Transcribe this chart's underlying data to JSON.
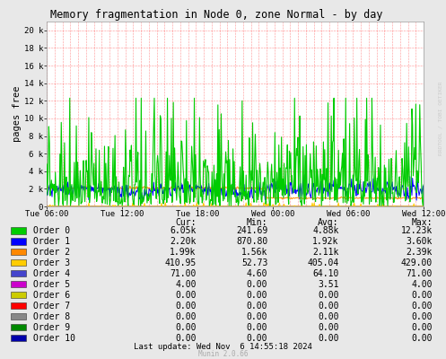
{
  "title": "Memory fragmentation in Node 0, zone Normal - by day",
  "ylabel": "pages free",
  "xlabel_ticks": [
    "Tue 06:00",
    "Tue 12:00",
    "Tue 18:00",
    "Wed 00:00",
    "Wed 06:00",
    "Wed 12:00"
  ],
  "yticks": [
    0,
    2000,
    4000,
    6000,
    8000,
    10000,
    12000,
    14000,
    16000,
    18000,
    20000
  ],
  "ytick_labels": [
    "0",
    "2 k",
    "4 k",
    "6 k",
    "8 k",
    "10 k",
    "12 k",
    "14 k",
    "16 k",
    "18 k",
    "20 k"
  ],
  "ymax": 21000,
  "bg_color": "#e8e8e8",
  "plot_bg_color": "#ffffff",
  "grid_color": "#ff0000",
  "orders": [
    "Order 0",
    "Order 1",
    "Order 2",
    "Order 3",
    "Order 4",
    "Order 5",
    "Order 6",
    "Order 7",
    "Order 8",
    "Order 9",
    "Order 10"
  ],
  "order_colors": [
    "#00cc00",
    "#0000ff",
    "#ff8800",
    "#ffcc00",
    "#4444cc",
    "#cc00cc",
    "#cccc00",
    "#ff0000",
    "#888888",
    "#008800",
    "#0000aa"
  ],
  "legend_cur": [
    "6.05k",
    "2.20k",
    "1.99k",
    "410.95",
    "71.00",
    "4.00",
    "0.00",
    "0.00",
    "0.00",
    "0.00",
    "0.00"
  ],
  "legend_min": [
    "241.69",
    "870.80",
    "1.56k",
    "52.73",
    "4.60",
    "0.00",
    "0.00",
    "0.00",
    "0.00",
    "0.00",
    "0.00"
  ],
  "legend_avg": [
    "4.88k",
    "1.92k",
    "2.11k",
    "405.04",
    "64.10",
    "3.51",
    "0.00",
    "0.00",
    "0.00",
    "0.00",
    "0.00"
  ],
  "legend_max": [
    "12.23k",
    "3.60k",
    "2.39k",
    "429.00",
    "71.00",
    "4.00",
    "0.00",
    "0.00",
    "0.00",
    "0.00",
    "0.00"
  ],
  "last_update": "Last update: Wed Nov  6 14:55:18 2024",
  "munin_version": "Munin 2.0.66",
  "right_label": "RRDTOOL / TOBI OETIKER",
  "n_points": 576
}
